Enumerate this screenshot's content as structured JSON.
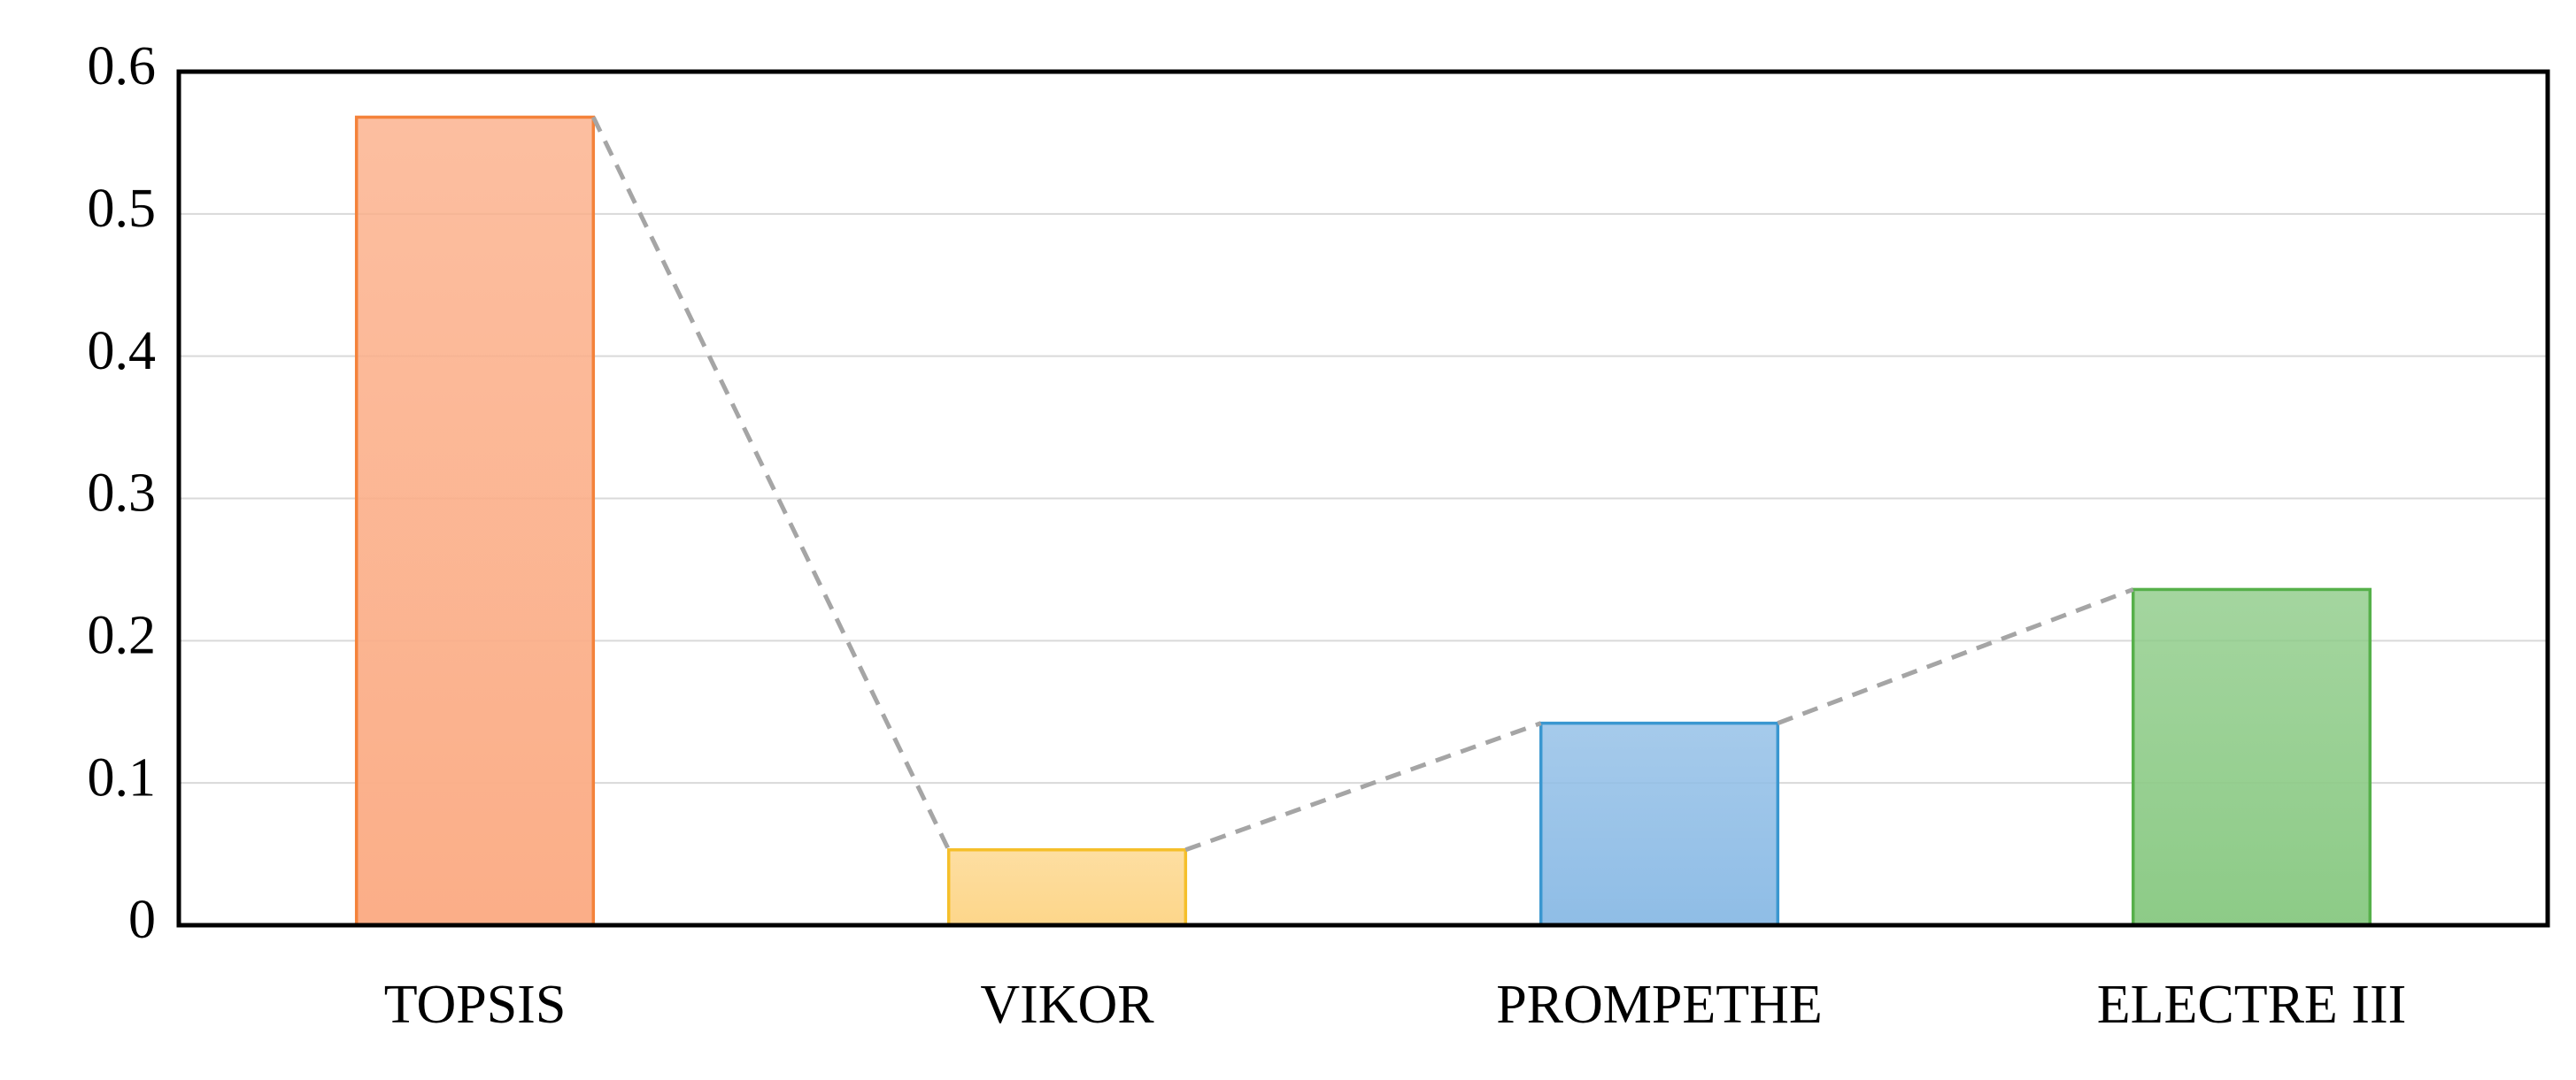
{
  "chart_data": {
    "type": "bar",
    "categories": [
      "TOPSIS",
      "VIKOR",
      "PROMPETHE",
      "ELECTRE III"
    ],
    "values": [
      0.568,
      0.053,
      0.142,
      0.236
    ],
    "colors": [
      "#fbae88",
      "#fdd68a",
      "#8fbde6",
      "#8dcb87"
    ],
    "edge_colors": [
      "#f4823a",
      "#f5bf2a",
      "#3a97d0",
      "#56b04a"
    ],
    "connector": {
      "color": "#a5a5a5",
      "style": "dashed"
    },
    "ylim": [
      0,
      0.6
    ],
    "yticks": [
      0,
      0.1,
      0.2,
      0.3,
      0.4,
      0.5,
      0.6
    ],
    "grid": true
  }
}
